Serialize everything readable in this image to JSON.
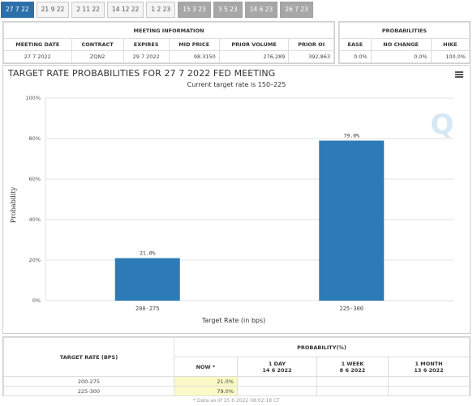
{
  "tabs": [
    {
      "label": "27 7 22",
      "state": "active"
    },
    {
      "label": "21 9 22",
      "state": "normal"
    },
    {
      "label": "2 11 22",
      "state": "normal"
    },
    {
      "label": "14 12 22",
      "state": "normal"
    },
    {
      "label": "1 2 23",
      "state": "normal"
    },
    {
      "label": "15 3 23",
      "state": "dark"
    },
    {
      "label": "3 5 23",
      "state": "dark"
    },
    {
      "label": "14 6 23",
      "state": "dark"
    },
    {
      "label": "26 7 23",
      "state": "dark"
    }
  ],
  "meeting_info": {
    "header": "MEETING INFORMATION",
    "columns": [
      "MEETING DATE",
      "CONTRACT",
      "EXPIRES",
      "MID PRICE",
      "PRIOR VOLUME",
      "PRIOR OI"
    ],
    "row": [
      "27 7 2022",
      "ZQN2",
      "29 7 2022",
      "98.3150",
      "276,289",
      "392,863"
    ]
  },
  "probabilities": {
    "header": "PROBABILITIES",
    "columns": [
      "EASE",
      "NO CHANGE",
      "HIKE"
    ],
    "row": [
      "0.0%",
      "0.0%",
      "100.0%"
    ]
  },
  "chart_data": {
    "type": "bar",
    "title": "TARGET RATE PROBABILITIES FOR 27 7 2022 FED MEETING",
    "subtitle": "Current target rate is 150–225",
    "categories": [
      "200-275",
      "225-300"
    ],
    "values": [
      21.0,
      79.0
    ],
    "value_labels": [
      "21.0%",
      "79.0%"
    ],
    "xlabel": "Target Rate (in bps)",
    "ylabel": "Probability",
    "ylim": [
      0,
      100
    ],
    "yticks": [
      0,
      20,
      40,
      60,
      80,
      100
    ],
    "ytick_labels": [
      "0%",
      "20%",
      "40%",
      "60%",
      "80%",
      "100%"
    ],
    "grid": true,
    "bar_color": "#2c7bb6"
  },
  "prob_table": {
    "col1_header": "TARGET RATE (BPS)",
    "group_header": "PROBABILITY(%)",
    "sub_headers": [
      {
        "line1": "NOW *",
        "line2": ""
      },
      {
        "line1": "1 DAY",
        "line2": "14 6 2022"
      },
      {
        "line1": "1 WEEK",
        "line2": "8 6 2022"
      },
      {
        "line1": "1 MONTH",
        "line2": "13 6 2022"
      }
    ],
    "rows": [
      {
        "rate": "200-275",
        "now": "21.0%",
        "day": "",
        "week": "",
        "month": ""
      },
      {
        "rate": "225-300",
        "now": "79.0%",
        "day": "",
        "week": "",
        "month": ""
      }
    ]
  },
  "footnote": "* Data as of 15 6 2022 08:02:18 CT",
  "watermark": "Q"
}
